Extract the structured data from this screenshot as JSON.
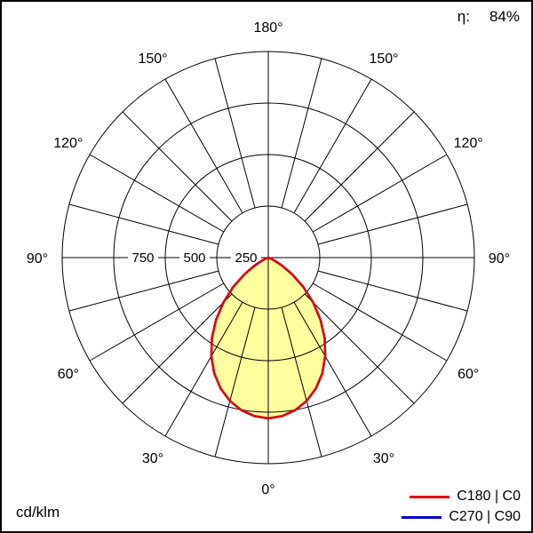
{
  "chart_data": {
    "type": "polar",
    "subtype": "luminous-intensity-distribution",
    "units": "cd/klm",
    "efficiency_label": "η:",
    "efficiency_value": "84%",
    "radial_max": 1000,
    "radial_ticks": [
      250,
      500,
      750
    ],
    "radial_tick_labels": [
      "250",
      "500",
      "750"
    ],
    "spoke_step_deg": 15,
    "angle_labels": [
      {
        "deg": 0,
        "label": "0°"
      },
      {
        "deg": 30,
        "label": "30°"
      },
      {
        "deg": 60,
        "label": "60°"
      },
      {
        "deg": 90,
        "label": "90°"
      },
      {
        "deg": 120,
        "label": "120°"
      },
      {
        "deg": 150,
        "label": "150°"
      },
      {
        "deg": 180,
        "label": "180°"
      }
    ],
    "fill_color": "#ffffa0",
    "grid_color": "#000000",
    "series": [
      {
        "name": "C180 | C0",
        "color": "#e60000",
        "gamma_deg": [
          0,
          5,
          10,
          15,
          20,
          25,
          30,
          35,
          40,
          45,
          50,
          55,
          60,
          65,
          70,
          75,
          80,
          85,
          90
        ],
        "values_cd_per_klm": [
          780,
          772,
          752,
          720,
          676,
          620,
          553,
          477,
          394,
          308,
          222,
          142,
          75,
          28,
          5,
          0,
          0,
          0,
          0
        ]
      },
      {
        "name": "C270 | C90",
        "color": "#0000cc",
        "gamma_deg": [
          0,
          5,
          10,
          15,
          20,
          25,
          30,
          35,
          40,
          45,
          50,
          55,
          60,
          65,
          70,
          75,
          80,
          85,
          90
        ],
        "values_cd_per_klm": [
          780,
          772,
          752,
          720,
          676,
          620,
          553,
          477,
          394,
          308,
          222,
          142,
          75,
          28,
          5,
          0,
          0,
          0,
          0
        ]
      }
    ]
  }
}
